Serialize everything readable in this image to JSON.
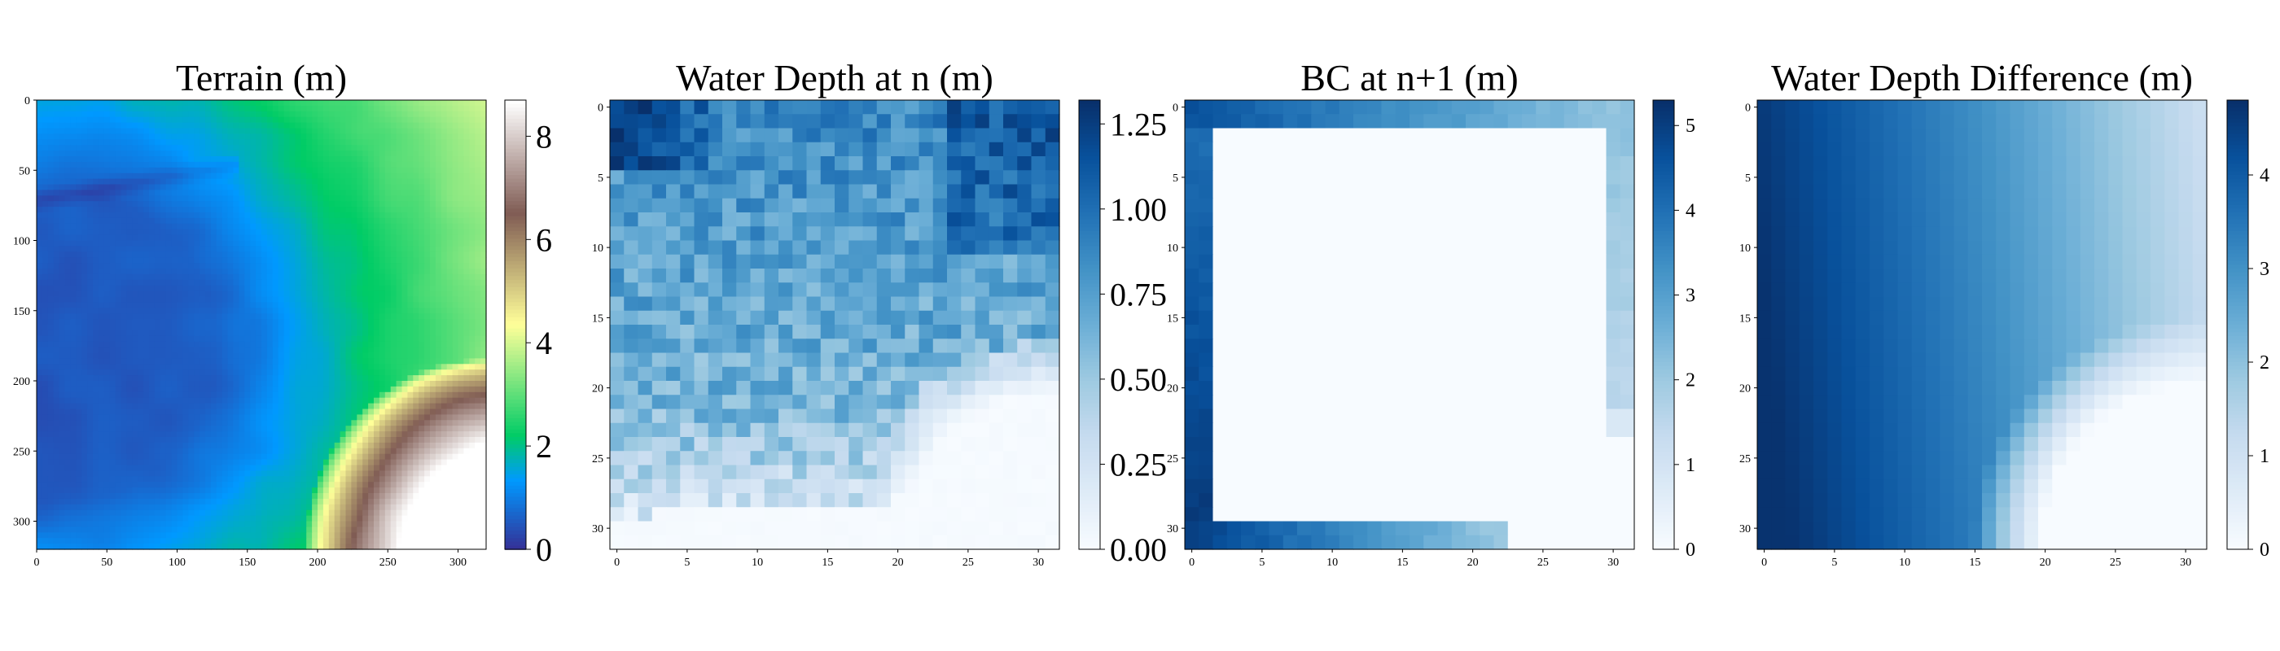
{
  "chart_data": [
    {
      "type": "heatmap",
      "title": "Terrain (m)",
      "grid_size": 320,
      "colormap": "terrain",
      "vmin": 0,
      "vmax": 8.7,
      "x_ticks": [
        0,
        50,
        100,
        150,
        200,
        250,
        300
      ],
      "y_ticks": [
        0,
        50,
        100,
        150,
        200,
        250,
        300
      ],
      "colorbar_ticks": [
        "0",
        "2",
        "4",
        "6",
        "8"
      ],
      "description_values": {
        "upper_left_channel_depth": 0.3,
        "center_left_basin": 0.8,
        "right_plateau": 2.8,
        "bottom_right_peak": 8.5
      }
    },
    {
      "type": "heatmap",
      "title": "Water Depth at n (m)",
      "grid_size": 32,
      "colormap": "Blues",
      "vmin": 0,
      "vmax": 1.32,
      "x_ticks": [
        0,
        5,
        10,
        15,
        20,
        25,
        30
      ],
      "y_ticks": [
        0,
        5,
        10,
        15,
        20,
        25,
        30
      ],
      "colorbar_ticks": [
        "0.00",
        "0.25",
        "0.50",
        "0.75",
        "1.00",
        "1.25"
      ],
      "description_values": {
        "top_left_max": 1.3,
        "typical_interior": 0.65,
        "dry_bottom_right": 0.0
      }
    },
    {
      "type": "heatmap",
      "title": "BC at n+1 (m)",
      "grid_size": 32,
      "colormap": "Blues",
      "vmin": 0,
      "vmax": 5.3,
      "x_ticks": [
        0,
        5,
        10,
        15,
        20,
        25,
        30
      ],
      "y_ticks": [
        0,
        5,
        10,
        15,
        20,
        25,
        30
      ],
      "colorbar_ticks": [
        "0",
        "1",
        "2",
        "3",
        "4",
        "5"
      ],
      "description_values": {
        "boundary_ring_width_cells": 2,
        "bottom_left_corner_max": 5.2,
        "interior": 0.0
      }
    },
    {
      "type": "heatmap",
      "title": "Water Depth Difference (m)",
      "grid_size": 32,
      "colormap": "Blues",
      "vmin": 0,
      "vmax": 4.8,
      "x_ticks": [
        0,
        5,
        10,
        15,
        20,
        25,
        30
      ],
      "y_ticks": [
        0,
        5,
        10,
        15,
        20,
        25,
        30
      ],
      "colorbar_ticks": [
        "0",
        "1",
        "2",
        "3",
        "4"
      ],
      "description_values": {
        "bottom_left_max": 4.7,
        "top_right": 1.2,
        "dry_bottom_right": 0.0
      }
    }
  ]
}
